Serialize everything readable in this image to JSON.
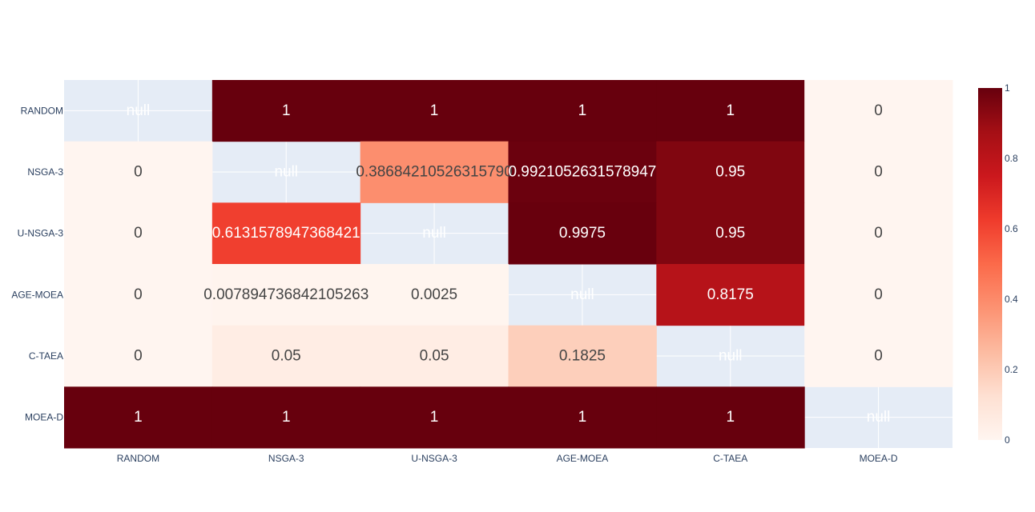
{
  "chart_data": {
    "type": "heatmap",
    "title": "",
    "xlabel": "",
    "ylabel": "",
    "x_categories": [
      "RANDOM",
      "NSGA-3",
      "U-NSGA-3",
      "AGE-MOEA",
      "C-TAEA",
      "MOEA-D"
    ],
    "y_categories": [
      "RANDOM",
      "NSGA-3",
      "U-NSGA-3",
      "AGE-MOEA",
      "C-TAEA",
      "MOEA-D"
    ],
    "z": [
      [
        null,
        1,
        1,
        1,
        1,
        0
      ],
      [
        0,
        null,
        0.3868421052631579,
        0.9921052631578947,
        0.95,
        0
      ],
      [
        0,
        0.6131578947368421,
        null,
        0.9975,
        0.95,
        0
      ],
      [
        0,
        0.007894736842105263,
        0.0025,
        null,
        0.8175,
        0
      ],
      [
        0,
        0.05,
        0.05,
        0.1825,
        null,
        0
      ],
      [
        1,
        1,
        1,
        1,
        1,
        null
      ]
    ],
    "text": [
      [
        "null",
        "1",
        "1",
        "1",
        "1",
        "0"
      ],
      [
        "0",
        "null",
        "0.38684210526315790",
        "0.9921052631578947",
        "0.95",
        "0"
      ],
      [
        "0",
        "0.6131578947368421",
        "null",
        "0.9975",
        "0.95",
        "0"
      ],
      [
        "0",
        "0.007894736842105263",
        "0.0025",
        "null",
        "0.8175",
        "0"
      ],
      [
        "0",
        "0.05",
        "0.05",
        "0.1825",
        "null",
        "0"
      ],
      [
        "1",
        "1",
        "1",
        "1",
        "1",
        "null"
      ]
    ],
    "colorscale": "Reds",
    "zrange": [
      0,
      1
    ],
    "colorbar_ticks": [
      "0",
      "0.2",
      "0.4",
      "0.6",
      "0.8",
      "1"
    ],
    "colorbar_tick_values": [
      0,
      0.2,
      0.4,
      0.6,
      0.8,
      1
    ],
    "colorbar_placement": "right",
    "null_color": "#e5ecf6",
    "grid": true
  }
}
